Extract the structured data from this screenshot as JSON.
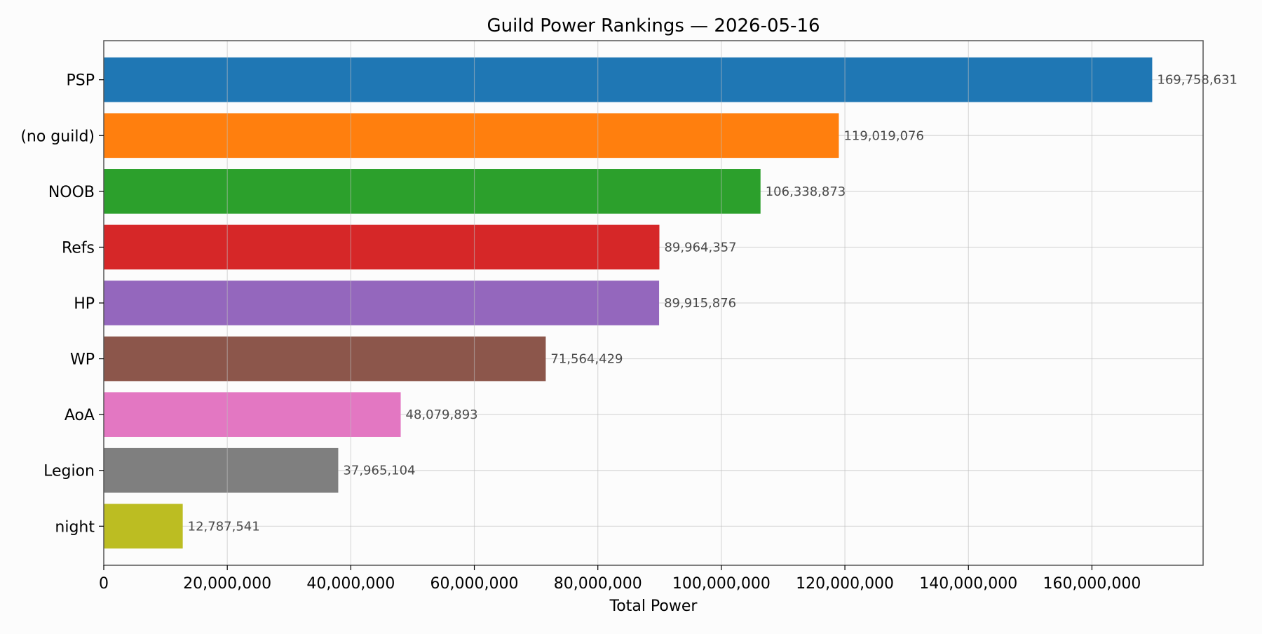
{
  "chart_data": {
    "type": "bar",
    "orientation": "horizontal",
    "title": "Guild Power Rankings — 2026-05-16",
    "xlabel": "Total Power",
    "ylabel": "",
    "xlim": [
      0,
      178000000
    ],
    "grid": true,
    "categories": [
      "PSP",
      "(no guild)",
      "NOOB",
      "Refs",
      "HP",
      "WP",
      "AoA",
      "Legion",
      "night"
    ],
    "values": [
      169758631,
      119019076,
      106338873,
      89964357,
      89915876,
      71564429,
      48079893,
      37965104,
      12787541
    ],
    "value_labels": [
      "169,758,631",
      "119,019,076",
      "106,338,873",
      "89,964,357",
      "89,915,876",
      "71,564,429",
      "48,079,893",
      "37,965,104",
      "12,787,541"
    ],
    "colors": [
      "#1f77b4",
      "#ff7f0e",
      "#2ca02c",
      "#d62728",
      "#9467bd",
      "#8c564b",
      "#e377c2",
      "#7f7f7f",
      "#bcbd22"
    ],
    "x_ticks": [
      0,
      20000000,
      40000000,
      60000000,
      80000000,
      100000000,
      120000000,
      140000000,
      160000000
    ],
    "x_tick_labels": [
      "0",
      "20,000,000",
      "40,000,000",
      "60,000,000",
      "80,000,000",
      "100,000,000",
      "120,000,000",
      "140,000,000",
      "160,000,000"
    ]
  }
}
